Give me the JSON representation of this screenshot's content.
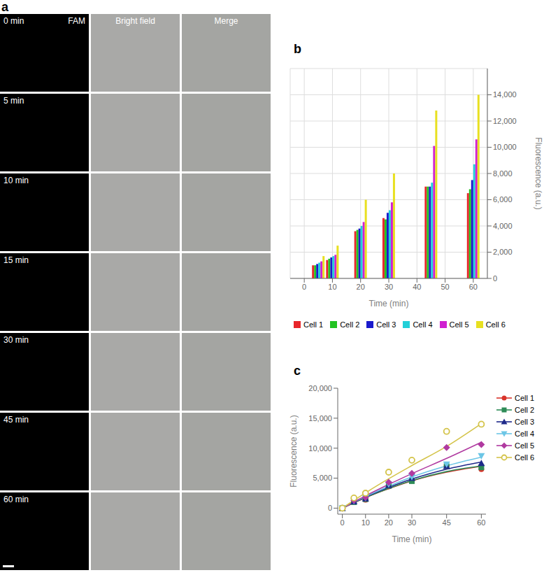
{
  "panels": {
    "a": {
      "label": "a",
      "columns": [
        "FAM",
        "Bright field",
        "Merge"
      ],
      "rows": [
        "0 min",
        "5 min",
        "10 min",
        "15 min",
        "30 min",
        "45 min",
        "60 min"
      ]
    }
  },
  "chart_data": [
    {
      "label": "b",
      "type": "bar",
      "x_label": "Time (min)",
      "y_label": "Fluorescence (a.u.)",
      "x": [
        0,
        5,
        10,
        20,
        30,
        45,
        60
      ],
      "xlim": [
        -5,
        65
      ],
      "xticks": [
        0,
        10,
        20,
        30,
        40,
        50,
        60
      ],
      "ylim": [
        0,
        16000
      ],
      "yticks": [
        0,
        {
          "value": 2000,
          "label": "2,000"
        },
        {
          "value": 4000,
          "label": "4,000"
        },
        {
          "value": 6000,
          "label": "6,000"
        },
        {
          "value": 8000,
          "label": "8,000"
        },
        {
          "value": 10000,
          "label": "10,000"
        },
        {
          "value": 12000,
          "label": "12,000"
        },
        {
          "value": 14000,
          "label": "14,000"
        }
      ],
      "grid": true,
      "series": [
        {
          "name": "Cell 1",
          "color": "#e8262b",
          "values": [
            0,
            1000,
            1400,
            3600,
            4600,
            7000,
            6500
          ]
        },
        {
          "name": "Cell 2",
          "color": "#22c322",
          "values": [
            0,
            1000,
            1500,
            3700,
            4500,
            7000,
            6800
          ]
        },
        {
          "name": "Cell 3",
          "color": "#1a1acc",
          "values": [
            0,
            1100,
            1600,
            3800,
            5000,
            7000,
            7500
          ]
        },
        {
          "name": "Cell 4",
          "color": "#22d0d8",
          "values": [
            0,
            1200,
            1700,
            4000,
            5200,
            7300,
            8700
          ]
        },
        {
          "name": "Cell 5",
          "color": "#d020d0",
          "values": [
            0,
            1300,
            1800,
            4300,
            5800,
            10100,
            10600
          ]
        },
        {
          "name": "Cell 6",
          "color": "#e8e020",
          "values": [
            0,
            1700,
            2500,
            6000,
            8000,
            12800,
            14000
          ]
        }
      ]
    },
    {
      "label": "c",
      "type": "scatter",
      "x_label": "Time (min)",
      "y_label": "Fluorescence (a.u.)",
      "x": [
        0,
        5,
        10,
        20,
        30,
        45,
        60
      ],
      "xlim": [
        -2,
        62
      ],
      "xticks": [
        0,
        10,
        20,
        30,
        45,
        60
      ],
      "ylim": [
        -1000,
        20000
      ],
      "yticks": [
        0,
        {
          "value": 5000,
          "label": "5,000"
        },
        {
          "value": 10000,
          "label": "10,000"
        },
        {
          "value": 15000,
          "label": "15,000"
        },
        {
          "value": 20000,
          "label": "20,000"
        }
      ],
      "legend": "right",
      "series": [
        {
          "name": "Cell 1",
          "color": "#d9342b",
          "marker": "circle",
          "line_style": "solid",
          "values": [
            0,
            1000,
            1400,
            3600,
            4600,
            7000,
            6500
          ],
          "fit": [
            0,
            900,
            1750,
            3250,
            4550,
            6000,
            7000
          ]
        },
        {
          "name": "Cell 2",
          "color": "#2e8b57",
          "marker": "square",
          "line_style": "solid",
          "values": [
            0,
            1000,
            1500,
            3700,
            4500,
            7000,
            6800
          ],
          "fit": [
            0,
            920,
            1780,
            3300,
            4600,
            6100,
            7050
          ]
        },
        {
          "name": "Cell 3",
          "color": "#1f2a8a",
          "marker": "triangle",
          "line_style": "solid",
          "values": [
            0,
            1100,
            1600,
            3800,
            5000,
            7000,
            7500
          ],
          "fit": [
            0,
            950,
            1850,
            3450,
            4850,
            6500,
            7700
          ]
        },
        {
          "name": "Cell 4",
          "color": "#6cc6e6",
          "marker": "triangle-down",
          "line_style": "solid",
          "values": [
            0,
            1200,
            1700,
            4000,
            5200,
            7300,
            8700
          ],
          "fit": [
            0,
            1000,
            1950,
            3650,
            5200,
            7050,
            8500
          ]
        },
        {
          "name": "Cell 5",
          "color": "#b03aa0",
          "marker": "diamond",
          "line_style": "solid",
          "values": [
            0,
            1300,
            1800,
            4300,
            5800,
            10100,
            10600
          ],
          "fit": [
            0,
            1050,
            2050,
            3950,
            5750,
            8300,
            11000
          ]
        },
        {
          "name": "Cell 6",
          "color": "#d4c44a",
          "marker": "circle-open",
          "line_style": "solid",
          "values": [
            0,
            1700,
            2500,
            6000,
            8000,
            12800,
            14000
          ],
          "fit": [
            0,
            1300,
            2550,
            4900,
            7100,
            10300,
            14100
          ]
        }
      ]
    }
  ]
}
